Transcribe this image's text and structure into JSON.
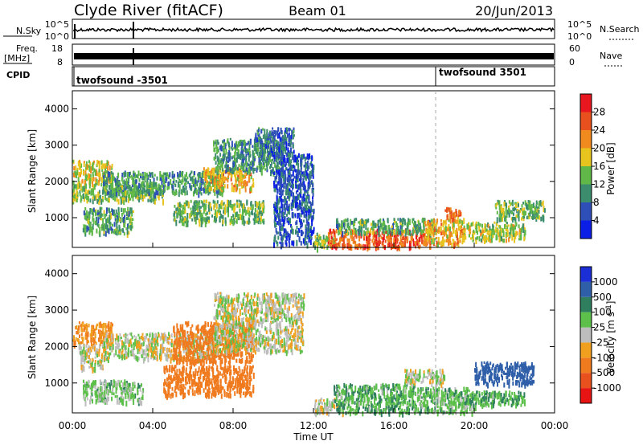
{
  "header": {
    "station": "Clyde River (fitACF)",
    "beam": "Beam 01",
    "date": "20/Jun/2013"
  },
  "param_panels": {
    "nsky_label": "N.Sky",
    "nsky_ticks": [
      "10^5",
      "10^0"
    ],
    "nsearch_label": "N.Search",
    "nsearch_ticks": [
      "10^5",
      "10^0"
    ],
    "freq_label_1": "Freq.",
    "freq_label_2": "[MHz]",
    "freq_ticks": [
      "18",
      "8"
    ],
    "nave_label": "Nave",
    "nave_ticks": [
      "60",
      "0"
    ],
    "cpid_label": "CPID",
    "cpid_segments": [
      {
        "start_hour": 0,
        "label": "twofsound -3501"
      },
      {
        "start_hour": 18,
        "label": "twofsound 3501"
      }
    ]
  },
  "axes": {
    "ylabel": "Slant Range [km]",
    "xlabel": "Time UT",
    "x_ticks": [
      "00:00",
      "04:00",
      "08:00",
      "12:00",
      "16:00",
      "20:00",
      "00:00"
    ],
    "y_ticks": [
      "1000",
      "2000",
      "3000",
      "4000"
    ]
  },
  "colorbars": {
    "power": {
      "label": "Power [dB]",
      "ticks": [
        "4",
        "8",
        "12",
        "16",
        "20",
        "24",
        "28"
      ],
      "colors": [
        "#0b1ee6",
        "#2f4fb8",
        "#3c8c6e",
        "#5fb847",
        "#e8c51e",
        "#f08a1e",
        "#e8501e",
        "#e8161e"
      ]
    },
    "velocity": {
      "label_main": "Velocity [m s",
      "label_sup": "-1",
      "label_end": "]",
      "ticks": [
        "1000",
        "500",
        "100",
        "25",
        "-25",
        "-100",
        "-500",
        "-1000"
      ],
      "colors": [
        "#1c2fd6",
        "#2f5fa8",
        "#2f7f5f",
        "#5cc04a",
        "#bdbdbd",
        "#f0a01e",
        "#f07a1e",
        "#e8501e",
        "#e81414"
      ]
    }
  },
  "chart_data": [
    {
      "type": "heatmap",
      "name": "power",
      "x_range_hours": [
        0,
        24
      ],
      "ylim": [
        180,
        4500
      ],
      "grid": false,
      "blobs": [
        {
          "t0": 0.0,
          "t1": 2.0,
          "r0": 2000,
          "r1": 2600,
          "value": 18
        },
        {
          "t0": 0.0,
          "t1": 4.5,
          "r0": 1500,
          "r1": 2000,
          "value": 14
        },
        {
          "t0": 1.5,
          "t1": 7.5,
          "r0": 1700,
          "r1": 2300,
          "value": 11
        },
        {
          "t0": 0.5,
          "t1": 3.0,
          "r0": 600,
          "r1": 1300,
          "value": 12
        },
        {
          "t0": 5.0,
          "t1": 9.5,
          "r0": 900,
          "r1": 1500,
          "value": 13
        },
        {
          "t0": 6.5,
          "t1": 9.0,
          "r0": 1800,
          "r1": 2400,
          "value": 20
        },
        {
          "t0": 7.0,
          "t1": 10.5,
          "r0": 2300,
          "r1": 3200,
          "value": 10
        },
        {
          "t0": 9.0,
          "t1": 11.0,
          "r0": 2800,
          "r1": 3500,
          "value": 8
        },
        {
          "t0": 10.0,
          "t1": 12.0,
          "r0": 300,
          "r1": 2800,
          "value": 6
        },
        {
          "t0": 12.0,
          "t1": 13.0,
          "r0": 200,
          "r1": 600,
          "value": 15
        },
        {
          "t0": 12.7,
          "t1": 17.8,
          "r0": 220,
          "r1": 700,
          "value": 26
        },
        {
          "t0": 13.0,
          "t1": 18.0,
          "r0": 600,
          "r1": 1000,
          "value": 12
        },
        {
          "t0": 17.5,
          "t1": 19.5,
          "r0": 300,
          "r1": 1000,
          "value": 20
        },
        {
          "t0": 18.5,
          "t1": 19.3,
          "r0": 1000,
          "r1": 1300,
          "value": 24
        },
        {
          "t0": 19.5,
          "t1": 22.5,
          "r0": 400,
          "r1": 900,
          "value": 16
        },
        {
          "t0": 21.0,
          "t1": 23.5,
          "r0": 1000,
          "r1": 1500,
          "value": 14
        }
      ]
    },
    {
      "type": "heatmap",
      "name": "velocity",
      "x_range_hours": [
        0,
        24
      ],
      "ylim": [
        180,
        4500
      ],
      "grid": false,
      "blobs": [
        {
          "t0": 0.0,
          "t1": 2.0,
          "r0": 2100,
          "r1": 2700,
          "value": -100
        },
        {
          "t0": 0.3,
          "t1": 1.5,
          "r0": 1400,
          "r1": 2100,
          "value": 0
        },
        {
          "t0": 1.5,
          "t1": 7.0,
          "r0": 1700,
          "r1": 2400,
          "value": 0
        },
        {
          "t0": 5.0,
          "t1": 9.0,
          "r0": 1600,
          "r1": 2700,
          "value": -200
        },
        {
          "t0": 4.5,
          "t1": 9.0,
          "r0": 700,
          "r1": 1500,
          "value": -300
        },
        {
          "t0": 7.0,
          "t1": 11.5,
          "r0": 1900,
          "r1": 3500,
          "value": 0
        },
        {
          "t0": 0.5,
          "t1": 3.5,
          "r0": 500,
          "r1": 1100,
          "value": 50
        },
        {
          "t0": 12.0,
          "t1": 13.5,
          "r0": 200,
          "r1": 600,
          "value": 0
        },
        {
          "t0": 13.0,
          "t1": 17.0,
          "r0": 220,
          "r1": 1000,
          "value": 80
        },
        {
          "t0": 17.0,
          "t1": 20.0,
          "r0": 220,
          "r1": 900,
          "value": 60
        },
        {
          "t0": 19.5,
          "t1": 22.5,
          "r0": 400,
          "r1": 800,
          "value": 80
        },
        {
          "t0": 20.0,
          "t1": 23.0,
          "r0": 1000,
          "r1": 1600,
          "value": 600
        },
        {
          "t0": 16.5,
          "t1": 18.5,
          "r0": 1000,
          "r1": 1400,
          "value": 0
        }
      ]
    }
  ]
}
